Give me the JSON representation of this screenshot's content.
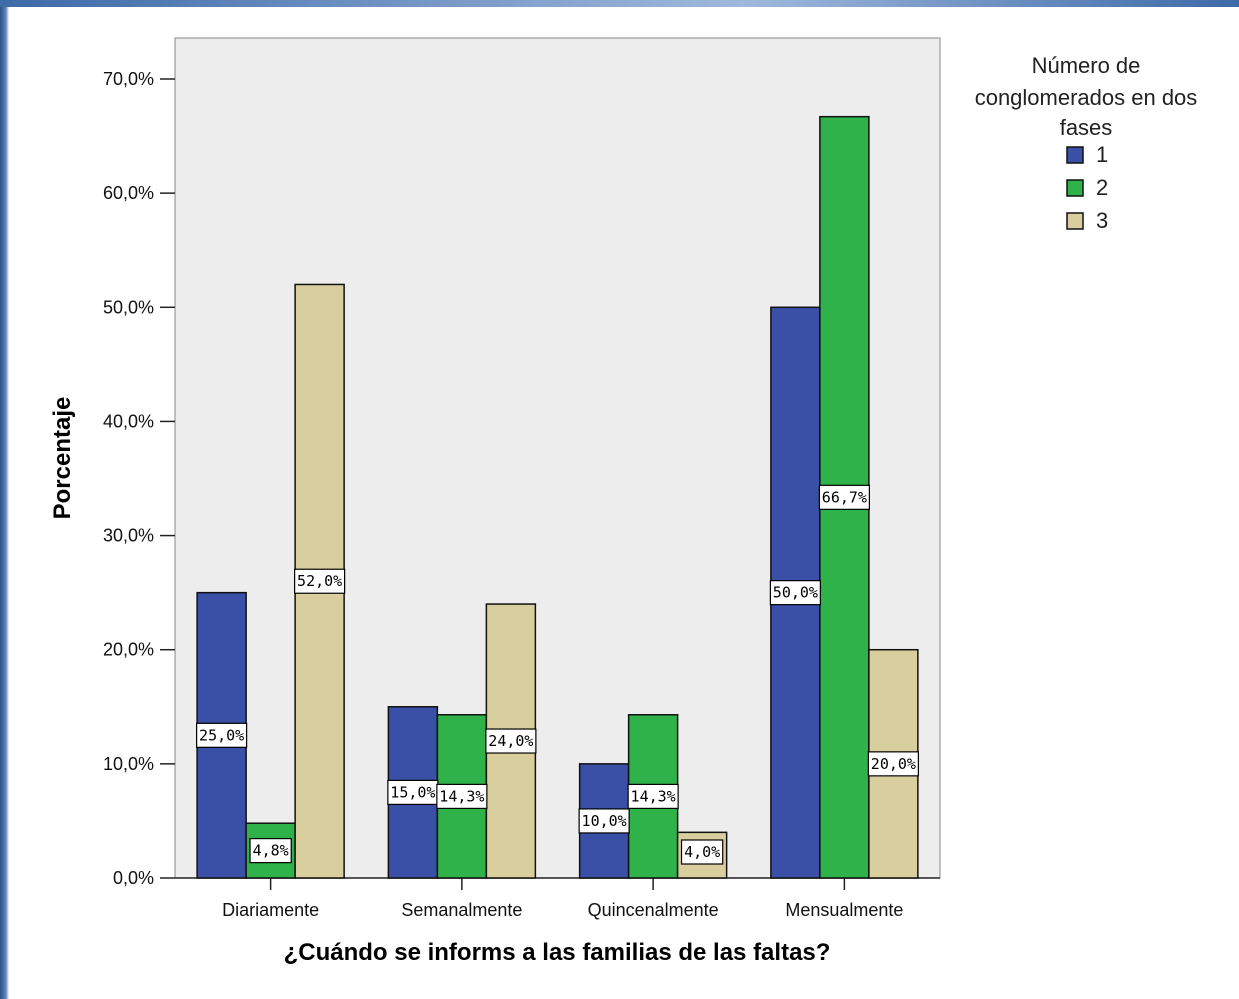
{
  "chart_data": {
    "type": "bar",
    "categories": [
      "Diariamente",
      "Semanalmente",
      "Quincenalmente",
      "Mensualmente"
    ],
    "series": [
      {
        "name": "1",
        "color": "#3a4fa6",
        "values": [
          25.0,
          15.0,
          10.0,
          50.0
        ],
        "labels": [
          "25,0%",
          "15,0%",
          "10,0%",
          "50,0%"
        ]
      },
      {
        "name": "2",
        "color": "#2fb24a",
        "values": [
          4.8,
          14.3,
          14.3,
          66.7
        ],
        "labels": [
          "4,8%",
          "14,3%",
          "14,3%",
          "66,7%"
        ]
      },
      {
        "name": "3",
        "color": "#d9cf9e",
        "values": [
          52.0,
          24.0,
          4.0,
          20.0
        ],
        "labels": [
          "52,0%",
          "24,0%",
          "4,0%",
          "20,0%"
        ]
      }
    ],
    "xlabel": "¿Cuándo se informs a las familias de las faltas?",
    "ylabel": "Porcentaje",
    "ylim": [
      0,
      70
    ],
    "yticks": [
      "0,0%",
      "10,0%",
      "20,0%",
      "30,0%",
      "40,0%",
      "50,0%",
      "60,0%",
      "70,0%"
    ],
    "legend_title": [
      "Número de",
      "conglomerados en dos",
      "fases"
    ],
    "legend_position": "top-right",
    "grid": false,
    "plot_background": "#ededed"
  }
}
